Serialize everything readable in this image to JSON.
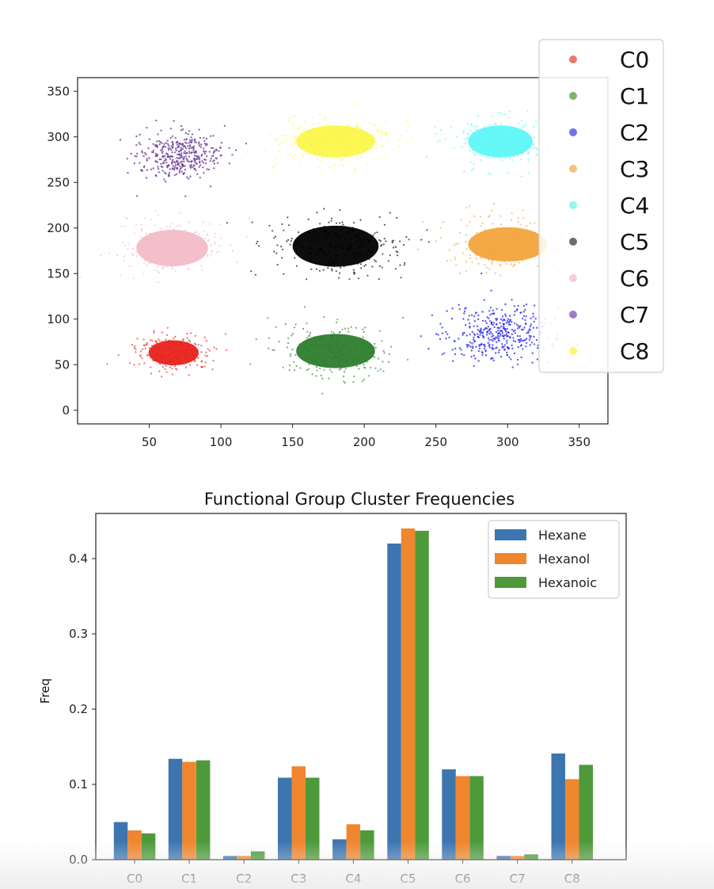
{
  "chart_data": [
    {
      "type": "scatter",
      "title": "",
      "xlabel": "",
      "ylabel": "",
      "xlim": [
        0,
        370
      ],
      "ylim": [
        -15,
        365
      ],
      "xticks": [
        50,
        100,
        150,
        200,
        250,
        300,
        350
      ],
      "yticks": [
        0,
        50,
        100,
        150,
        200,
        250,
        300,
        350
      ],
      "legend_position": "upper-right, outside",
      "clusters": [
        {
          "name": "C0",
          "color": "#e8231f",
          "legend_color": "#e97a6e",
          "center": [
            67,
            63
          ],
          "spread": [
            14,
            11
          ],
          "density": "high"
        },
        {
          "name": "C1",
          "color": "#2e7d2e",
          "legend_color": "#7db86a",
          "center": [
            180,
            65
          ],
          "spread": [
            22,
            15
          ],
          "density": "high"
        },
        {
          "name": "C2",
          "color": "#1a1aee",
          "legend_color": "#7070ee",
          "center": [
            292,
            85
          ],
          "spread": [
            20,
            18
          ],
          "density": "low"
        },
        {
          "name": "C3",
          "color": "#f2a53c",
          "legend_color": "#f2c27a",
          "center": [
            300,
            182
          ],
          "spread": [
            22,
            15
          ],
          "density": "high"
        },
        {
          "name": "C4",
          "color": "#5ef7f7",
          "legend_color": "#8ef7f7",
          "center": [
            295,
            295
          ],
          "spread": [
            18,
            14
          ],
          "density": "high"
        },
        {
          "name": "C5",
          "color": "#000000",
          "legend_color": "#6e6e6e",
          "center": [
            180,
            180
          ],
          "spread": [
            24,
            18
          ],
          "density": "high"
        },
        {
          "name": "C6",
          "color": "#f2bcc8",
          "legend_color": "#f4cfd8",
          "center": [
            66,
            178
          ],
          "spread": [
            20,
            16
          ],
          "density": "high"
        },
        {
          "name": "C7",
          "color": "#5e2a8a",
          "legend_color": "#9f7fc2",
          "center": [
            70,
            280
          ],
          "spread": [
            16,
            14
          ],
          "density": "low"
        },
        {
          "name": "C8",
          "color": "#fbf74a",
          "legend_color": "#fbf776",
          "center": [
            180,
            295
          ],
          "spread": [
            22,
            14
          ],
          "density": "high"
        }
      ]
    },
    {
      "type": "bar",
      "title": "Functional Group Cluster Frequencies",
      "xlabel": "",
      "ylabel": "Freq",
      "ylim": [
        0,
        0.46
      ],
      "yticks": [
        0.0,
        0.1,
        0.2,
        0.3,
        0.4
      ],
      "ytick_labels": [
        "0.0",
        "0.1",
        "0.2",
        "0.3",
        "0.4"
      ],
      "categories": [
        "C0",
        "C1",
        "C2",
        "C3",
        "C4",
        "C5",
        "C6",
        "C7",
        "C8"
      ],
      "legend_position": "top-right",
      "series": [
        {
          "name": "Hexane",
          "color": "#3d75b0",
          "values": [
            0.05,
            0.134,
            0.005,
            0.109,
            0.027,
            0.42,
            0.12,
            0.005,
            0.141
          ]
        },
        {
          "name": "Hexanol",
          "color": "#f0862e",
          "values": [
            0.039,
            0.13,
            0.005,
            0.124,
            0.047,
            0.44,
            0.111,
            0.005,
            0.107
          ]
        },
        {
          "name": "Hexanoic",
          "color": "#4e9a3b",
          "values": [
            0.035,
            0.132,
            0.011,
            0.109,
            0.039,
            0.437,
            0.111,
            0.007,
            0.126
          ]
        }
      ]
    }
  ]
}
